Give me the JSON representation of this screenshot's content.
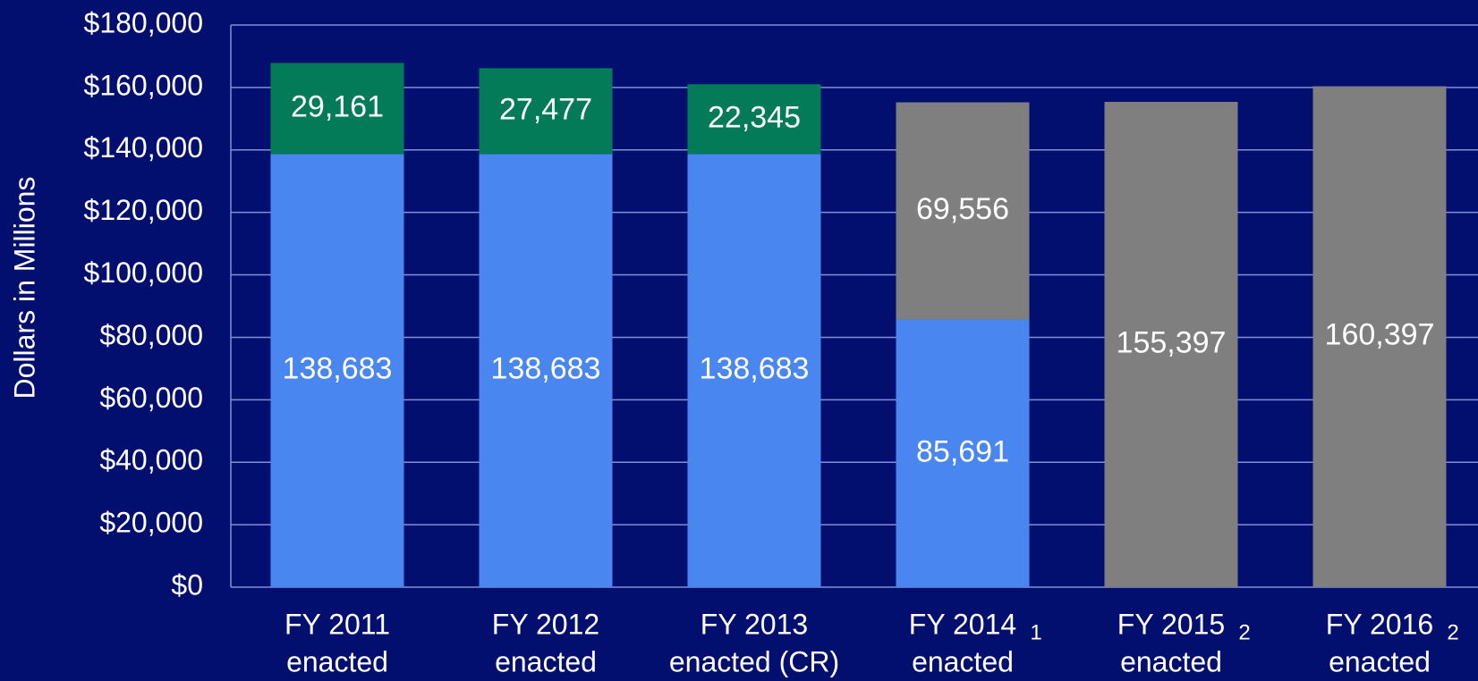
{
  "chart_data": {
    "type": "stacked_bar",
    "y_label": "Dollars in Millions",
    "categories": [
      "FY 2011",
      "FY 2012",
      "FY 2013",
      "FY 2014",
      "FY 2015",
      "FY 2016"
    ],
    "category_sublabels": [
      "enacted",
      "enacted",
      "enacted (CR)",
      "enacted",
      "enacted",
      "enacted"
    ],
    "category_notes": [
      null,
      null,
      null,
      "1",
      "2",
      "2"
    ],
    "series": [
      {
        "color": "#4a86f0",
        "values": [
          138683,
          138683,
          138683,
          85691,
          null,
          null
        ],
        "value_labels": [
          "138,683",
          "138,683",
          "138,683",
          "85,691",
          null,
          null
        ]
      },
      {
        "color": "#037b58",
        "values": [
          29161,
          27477,
          22345,
          null,
          null,
          null
        ],
        "value_labels": [
          "29,161",
          "27,477",
          "22,345",
          null,
          null,
          null
        ]
      },
      {
        "color": "#7f7f7f",
        "values": [
          null,
          null,
          null,
          69556,
          155397,
          160397
        ],
        "value_labels": [
          null,
          null,
          null,
          "69,556",
          "155,397",
          "160,397"
        ]
      }
    ],
    "ylim": [
      0,
      180000
    ],
    "yticks": [
      {
        "value": 0,
        "label": "$0"
      },
      {
        "value": 20000,
        "label": "$20,000"
      },
      {
        "value": 40000,
        "label": "$40,000"
      },
      {
        "value": 60000,
        "label": "$60,000"
      },
      {
        "value": 80000,
        "label": "$80,000"
      },
      {
        "value": 100000,
        "label": "$100,000"
      },
      {
        "value": 120000,
        "label": "$120,000"
      },
      {
        "value": 140000,
        "label": "$140,000"
      },
      {
        "value": 160000,
        "label": "$160,000"
      },
      {
        "value": 180000,
        "label": "$180,000"
      }
    ],
    "grid": true
  }
}
